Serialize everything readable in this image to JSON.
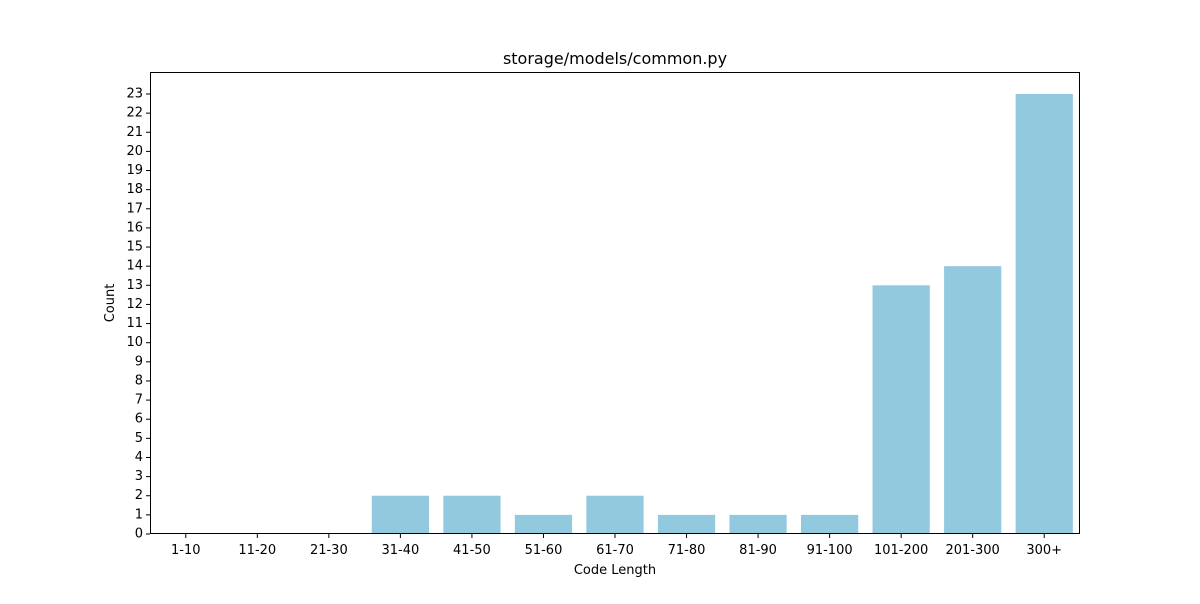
{
  "chart_data": {
    "type": "bar",
    "title": "storage/models/common.py",
    "xlabel": "Code Length",
    "ylabel": "Count",
    "categories": [
      "1-10",
      "11-20",
      "21-30",
      "31-40",
      "41-50",
      "51-60",
      "61-70",
      "71-80",
      "81-90",
      "91-100",
      "101-200",
      "201-300",
      "300+"
    ],
    "values": [
      0,
      0,
      0,
      2,
      2,
      1,
      2,
      1,
      1,
      1,
      13,
      14,
      23
    ],
    "ylim": [
      0,
      24.15
    ],
    "yticks": [
      0,
      1,
      2,
      3,
      4,
      5,
      6,
      7,
      8,
      9,
      10,
      11,
      12,
      13,
      14,
      15,
      16,
      17,
      18,
      19,
      20,
      21,
      22,
      23
    ],
    "bar_color": "#92c9de",
    "grid": false,
    "legend": "none"
  }
}
